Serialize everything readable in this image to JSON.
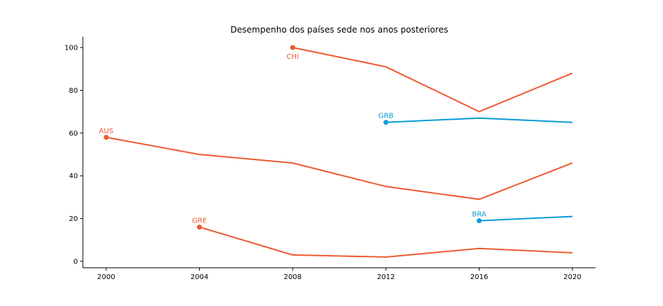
{
  "chart_data": {
    "type": "line",
    "title": "Desempenho dos países sede nos anos posteriores",
    "xlabel": "",
    "ylabel": "",
    "x_ticks": [
      2000,
      2004,
      2008,
      2012,
      2016,
      2020
    ],
    "y_ticks": [
      0,
      20,
      40,
      60,
      80,
      100
    ],
    "xlim": [
      1999,
      2021
    ],
    "ylim": [
      -3,
      105
    ],
    "grid": false,
    "legend": "none",
    "series": [
      {
        "name": "AUS",
        "color": "#ee5a33",
        "label_position": "above",
        "x": [
          2000,
          2004,
          2008,
          2012,
          2016,
          2020
        ],
        "y": [
          58,
          50,
          46,
          35,
          29,
          46
        ]
      },
      {
        "name": "GRE",
        "color": "#ee5a33",
        "label_position": "above",
        "x": [
          2004,
          2008,
          2012,
          2016,
          2020
        ],
        "y": [
          16,
          3,
          2,
          6,
          4
        ]
      },
      {
        "name": "CHI",
        "color": "#ee5a33",
        "label_position": "below",
        "x": [
          2008,
          2012,
          2016,
          2020
        ],
        "y": [
          100,
          91,
          70,
          88
        ]
      },
      {
        "name": "GRB",
        "color": "#0a9bd6",
        "label_position": "above",
        "x": [
          2012,
          2016,
          2020
        ],
        "y": [
          65,
          67,
          65
        ]
      },
      {
        "name": "BRA",
        "color": "#0a9bd6",
        "label_position": "above",
        "x": [
          2016,
          2020
        ],
        "y": [
          19,
          21
        ]
      }
    ]
  }
}
